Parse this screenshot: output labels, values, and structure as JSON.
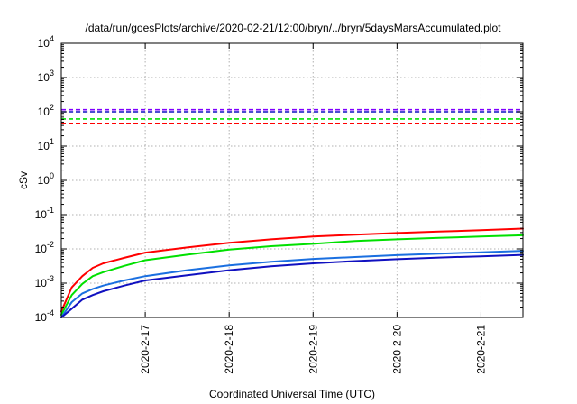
{
  "chart_data": {
    "type": "line",
    "title": "/data/run/goesPlots/archive/2020-02-21/12:00/bryn/../bryn/5daysMarsAccumulated.plot",
    "xlabel": "Coordinated Universal Time (UTC)",
    "ylabel": "cSv",
    "x_axis_type": "date",
    "xlim": [
      "2020-02-16 00:00",
      "2020-02-21 12:00"
    ],
    "x_ticks": [
      "2020-2-17",
      "2020-2-18",
      "2020-2-19",
      "2020-2-20",
      "2020-2-21"
    ],
    "y_scale": "log",
    "ylim": [
      0.0001,
      10000
    ],
    "y_ticks": [
      {
        "value": 0.0001,
        "base": "10",
        "exp": "-4"
      },
      {
        "value": 0.001,
        "base": "10",
        "exp": "-3"
      },
      {
        "value": 0.01,
        "base": "10",
        "exp": "-2"
      },
      {
        "value": 0.1,
        "base": "10",
        "exp": "-1"
      },
      {
        "value": 1,
        "base": "10",
        "exp": "0"
      },
      {
        "value": 10,
        "base": "10",
        "exp": "1"
      },
      {
        "value": 100,
        "base": "10",
        "exp": "2"
      },
      {
        "value": 1000,
        "base": "10",
        "exp": "3"
      },
      {
        "value": 10000,
        "base": "10",
        "exp": "4"
      }
    ],
    "grid": true,
    "legend": "none",
    "series": [
      {
        "color": "#ff0000",
        "x": [
          "2020-02-16 00:00",
          "2020-02-16 03:00",
          "2020-02-16 06:00",
          "2020-02-16 09:00",
          "2020-02-16 12:00",
          "2020-02-16 18:00",
          "2020-02-17 00:00",
          "2020-02-17 12:00",
          "2020-02-18 00:00",
          "2020-02-18 12:00",
          "2020-02-19 00:00",
          "2020-02-19 12:00",
          "2020-02-20 00:00",
          "2020-02-20 12:00",
          "2020-02-21 00:00",
          "2020-02-21 12:00"
        ],
        "y": [
          0.00015,
          0.00075,
          0.0016,
          0.0028,
          0.0038,
          0.0055,
          0.0078,
          0.011,
          0.015,
          0.019,
          0.023,
          0.026,
          0.029,
          0.032,
          0.035,
          0.039
        ]
      },
      {
        "color": "#00e000",
        "x": [
          "2020-02-16 00:00",
          "2020-02-16 03:00",
          "2020-02-16 06:00",
          "2020-02-16 09:00",
          "2020-02-16 12:00",
          "2020-02-16 18:00",
          "2020-02-17 00:00",
          "2020-02-17 12:00",
          "2020-02-18 00:00",
          "2020-02-18 12:00",
          "2020-02-19 00:00",
          "2020-02-19 12:00",
          "2020-02-20 00:00",
          "2020-02-20 12:00",
          "2020-02-21 00:00",
          "2020-02-21 12:00"
        ],
        "y": [
          0.00012,
          0.00045,
          0.00095,
          0.0016,
          0.0021,
          0.0032,
          0.0047,
          0.0068,
          0.0095,
          0.012,
          0.014,
          0.017,
          0.019,
          0.021,
          0.023,
          0.025
        ]
      },
      {
        "color": "#1a6fe0",
        "x": [
          "2020-02-16 00:00",
          "2020-02-16 03:00",
          "2020-02-16 06:00",
          "2020-02-16 09:00",
          "2020-02-16 12:00",
          "2020-02-16 18:00",
          "2020-02-17 00:00",
          "2020-02-17 12:00",
          "2020-02-18 00:00",
          "2020-02-18 12:00",
          "2020-02-19 00:00",
          "2020-02-19 12:00",
          "2020-02-20 00:00",
          "2020-02-20 12:00",
          "2020-02-21 00:00",
          "2020-02-21 12:00"
        ],
        "y": [
          0.0001,
          0.00028,
          0.0005,
          0.00068,
          0.00085,
          0.0012,
          0.0016,
          0.0024,
          0.0033,
          0.0042,
          0.0051,
          0.0058,
          0.0066,
          0.0073,
          0.008,
          0.0088
        ]
      },
      {
        "color": "#1010c0",
        "x": [
          "2020-02-16 00:00",
          "2020-02-16 03:00",
          "2020-02-16 06:00",
          "2020-02-16 09:00",
          "2020-02-16 12:00",
          "2020-02-16 18:00",
          "2020-02-17 00:00",
          "2020-02-17 12:00",
          "2020-02-18 00:00",
          "2020-02-18 12:00",
          "2020-02-19 00:00",
          "2020-02-19 12:00",
          "2020-02-20 00:00",
          "2020-02-20 12:00",
          "2020-02-21 00:00",
          "2020-02-21 12:00"
        ],
        "y": [
          0.0001,
          0.00018,
          0.00033,
          0.00045,
          0.00058,
          0.00085,
          0.0012,
          0.0017,
          0.0024,
          0.0031,
          0.0038,
          0.0044,
          0.005,
          0.0056,
          0.0061,
          0.0067
        ]
      }
    ],
    "threshold_lines": [
      {
        "color": "#8000ff",
        "y": 115
      },
      {
        "color": "#1010c0",
        "y": 100
      },
      {
        "color": "#00e000",
        "y": 62
      },
      {
        "color": "#ff0000",
        "y": 46
      }
    ]
  }
}
